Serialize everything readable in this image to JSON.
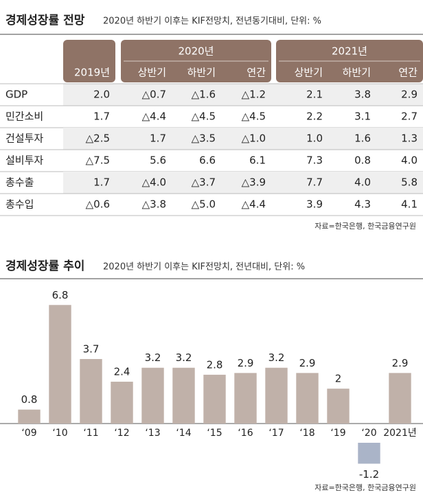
{
  "table": {
    "title": "경제성장률 전망",
    "subtitle": "2020년 하반기 이후는 KIF전망치, 전년동기대비, 단위: %",
    "groups": [
      "2020년",
      "2021년"
    ],
    "columns": [
      "2019년",
      "상반기",
      "하반기",
      "연간",
      "상반기",
      "하반기",
      "연간"
    ],
    "rows": [
      [
        "GDP",
        "2.0",
        "△0.7",
        "△1.6",
        "△1.2",
        "2.1",
        "3.8",
        "2.9"
      ],
      [
        "민간소비",
        "1.7",
        "△4.4",
        "△4.5",
        "△4.5",
        "2.2",
        "3.1",
        "2.7"
      ],
      [
        "건설투자",
        "△2.5",
        "1.7",
        "△3.5",
        "△1.0",
        "1.0",
        "1.6",
        "1.3"
      ],
      [
        "설비투자",
        "△7.5",
        "5.6",
        "6.6",
        "6.1",
        "7.3",
        "0.8",
        "4.0"
      ],
      [
        "총수출",
        "1.7",
        "△4.0",
        "△3.7",
        "△3.9",
        "7.7",
        "4.0",
        "5.8"
      ],
      [
        "총수입",
        "△0.6",
        "△3.8",
        "△5.0",
        "△4.4",
        "3.9",
        "4.3",
        "4.1"
      ]
    ],
    "source": "자료=한국은행, 한국금융연구원"
  },
  "chart_data": {
    "type": "bar",
    "title": "경제성장률 추이",
    "subtitle": "2020년 하반기 이후는 KIF전망치, 전년대비, 단위: %",
    "categories": [
      "‘09",
      "‘10",
      "‘11",
      "‘12",
      "‘13",
      "‘14",
      "‘15",
      "‘16",
      "‘17",
      "‘18",
      "‘19",
      "‘20",
      "2021년"
    ],
    "values": [
      0.8,
      6.8,
      3.7,
      2.4,
      3.2,
      3.2,
      2.8,
      2.9,
      3.2,
      2.9,
      2,
      -1.2,
      2.9
    ],
    "color": "#c0b1a9",
    "negative_color": "#aab4c8",
    "ylim": [
      -2,
      7.5
    ],
    "source": "자료=한국은행, 한국금융연구원"
  }
}
